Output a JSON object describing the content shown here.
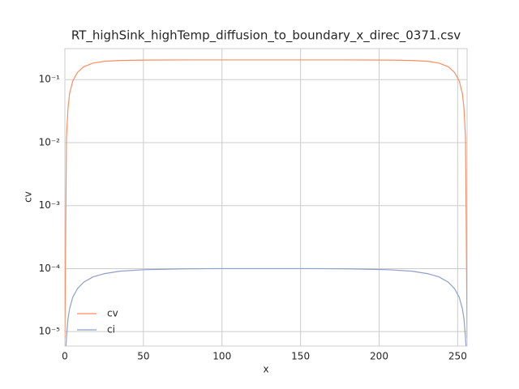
{
  "chart_data": {
    "type": "line",
    "title": "RT_highSink_highTemp_diffusion_to_boundary_x_direc_0371.csv",
    "x_label": "x",
    "y_label": "cv",
    "x": [
      0,
      1,
      2,
      3,
      5,
      8,
      12,
      18,
      25,
      35,
      50,
      75,
      100,
      128,
      156,
      181,
      206,
      221,
      231,
      238,
      244,
      248,
      251,
      253,
      254,
      255,
      256
    ],
    "series": [
      {
        "name": "cv",
        "color": "#fc8d62",
        "values": [
          8e-06,
          0.012,
          0.035,
          0.06,
          0.095,
          0.13,
          0.16,
          0.183,
          0.195,
          0.201,
          0.204,
          0.205,
          0.205,
          0.205,
          0.205,
          0.205,
          0.204,
          0.201,
          0.195,
          0.183,
          0.16,
          0.13,
          0.095,
          0.06,
          0.035,
          0.012,
          8e-06
        ]
      },
      {
        "name": "ci",
        "color": "#8da0cb",
        "values": [
          3e-06,
          8e-06,
          1.6e-05,
          2.3e-05,
          3.5e-05,
          4.8e-05,
          6.1e-05,
          7.4e-05,
          8.3e-05,
          9.1e-05,
          9.6e-05,
          9.9e-05,
          0.0001,
          0.0001,
          0.0001,
          9.9e-05,
          9.6e-05,
          9.1e-05,
          8.3e-05,
          7.4e-05,
          6.1e-05,
          4.8e-05,
          3.5e-05,
          2.3e-05,
          1.6e-05,
          8e-06,
          3e-06
        ]
      }
    ],
    "xlim": [
      0,
      256
    ],
    "xticks": [
      0,
      50,
      100,
      150,
      200,
      250
    ],
    "ylim": [
      5.9e-06,
      0.31
    ],
    "log_y": true,
    "yticks": [
      {
        "value": 1e-05,
        "label": "10⁻⁵"
      },
      {
        "value": 0.0001,
        "label": "10⁻⁴"
      },
      {
        "value": 0.001,
        "label": "10⁻³"
      },
      {
        "value": 0.01,
        "label": "10⁻²"
      },
      {
        "value": 0.1,
        "label": "10⁻¹"
      }
    ],
    "grid": true,
    "legend": "lower left"
  }
}
